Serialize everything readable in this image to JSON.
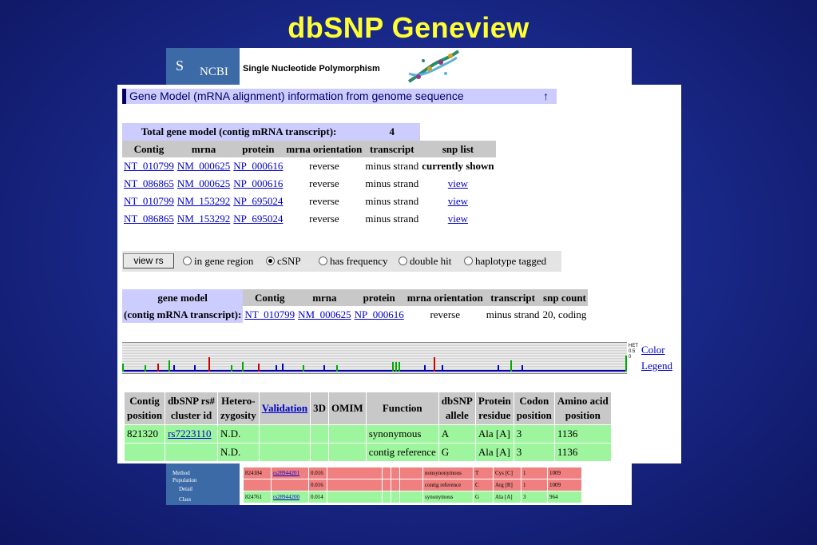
{
  "slide": {
    "title": "dbSNP Geneview"
  },
  "back_window": {
    "logo_text": "NCBI",
    "logo_symbol": "S",
    "header_title": "Single Nucleotide Polymorphism",
    "sidebar_labels": [
      "Method",
      "Population",
      "Detail",
      "Class"
    ],
    "rows": [
      {
        "pos": "824184",
        "rs": "rs28944201",
        "het": "0.016",
        "func": "nonsynonymous",
        "allele": "T",
        "residue": "Cys [C]",
        "codon": "1",
        "aa": "1009",
        "color": "red"
      },
      {
        "pos": "",
        "rs": "",
        "het": "0.016",
        "func": "contig reference",
        "allele": "C",
        "residue": "Arg [R]",
        "codon": "1",
        "aa": "1009",
        "color": "red"
      },
      {
        "pos": "824761",
        "rs": "rs28944200",
        "het": "0.014",
        "func": "synonymous",
        "allele": "G",
        "residue": "Ala [A]",
        "codon": "3",
        "aa": "964",
        "color": "green"
      }
    ]
  },
  "front_window": {
    "section_header": "Gene Model (mRNA alignment) information from genome sequence",
    "up_icon": "↑",
    "total_label": "Total gene model (contig mRNA transcript):",
    "total_value": "4",
    "model_headers": [
      "Contig",
      "mrna",
      "protein",
      "mrna orientation",
      "transcript",
      "snp list"
    ],
    "models": [
      {
        "contig": "NT_010799",
        "mrna": "NM_000625",
        "protein": "NP_000616",
        "orientation": "reverse",
        "transcript": "minus strand",
        "snp": "currently shown",
        "snp_link": false
      },
      {
        "contig": "NT_086865",
        "mrna": "NM_000625",
        "protein": "NP_000616",
        "orientation": "reverse",
        "transcript": "minus strand",
        "snp": "view",
        "snp_link": true
      },
      {
        "contig": "NT_010799",
        "mrna": "NM_153292",
        "protein": "NP_695024",
        "orientation": "reverse",
        "transcript": "minus strand",
        "snp": "view",
        "snp_link": true
      },
      {
        "contig": "NT_086865",
        "mrna": "NM_153292",
        "protein": "NP_695024",
        "orientation": "reverse",
        "transcript": "minus strand",
        "snp": "view",
        "snp_link": true
      }
    ],
    "form": {
      "button_label": "view rs",
      "options": [
        {
          "label": "in gene region",
          "selected": false
        },
        {
          "label": "cSNP",
          "selected": true
        },
        {
          "label": "has frequency",
          "selected": false
        },
        {
          "label": "double hit",
          "selected": false
        },
        {
          "label": "haplotype tagged",
          "selected": false
        }
      ]
    },
    "current_model": {
      "label_line1": "gene model",
      "label_line2": "(contig mRNA transcript):",
      "headers": [
        "Contig",
        "mrna",
        "protein",
        "mrna orientation",
        "transcript",
        "snp count"
      ],
      "contig": "NT_010799",
      "mrna": "NM_000625",
      "protein": "NP_000616",
      "orientation": "reverse",
      "transcript": "minus strand",
      "snp_count": "20, coding"
    },
    "track": {
      "scale_labels": [
        "HET",
        "0.5",
        "0"
      ],
      "color_link": "Color",
      "legend_link": "Legend"
    },
    "snp_table": {
      "headers": [
        [
          "Contig",
          "position"
        ],
        [
          "dbSNP rs#",
          "cluster id"
        ],
        [
          "Hetero-",
          "zygosity"
        ],
        [
          "Validation"
        ],
        [
          "3D"
        ],
        [
          "OMIM"
        ],
        [
          "Function"
        ],
        [
          "dbSNP",
          "allele"
        ],
        [
          "Protein",
          "residue"
        ],
        [
          "Codon",
          "position"
        ],
        [
          "Amino acid",
          "position"
        ]
      ],
      "rows": [
        {
          "pos": "821320",
          "rs": "rs7223110",
          "het": "N.D.",
          "validation": "",
          "d3": "",
          "omim": "",
          "function": "synonymous",
          "allele": "A",
          "residue": "Ala [A]",
          "codon": "3",
          "aa": "1136"
        },
        {
          "pos": "",
          "rs": "",
          "het": "N.D.",
          "validation": "",
          "d3": "",
          "omim": "",
          "function": "contig reference",
          "allele": "G",
          "residue": "Ala [A]",
          "codon": "3",
          "aa": "1136"
        }
      ]
    }
  }
}
